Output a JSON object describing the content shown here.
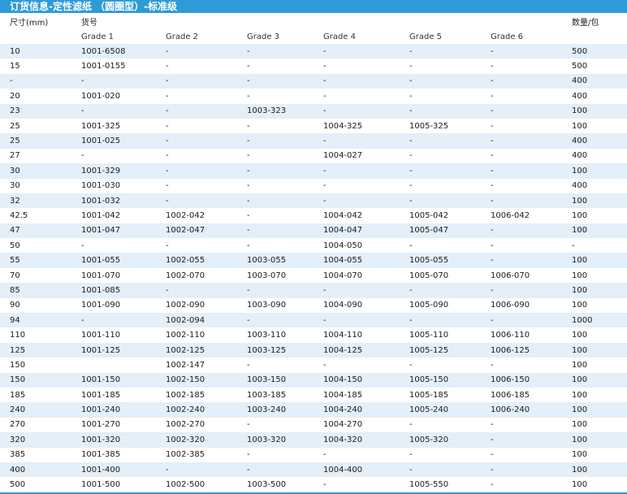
{
  "title": "订货信息-定性滤纸 （圆圈型）-标准级",
  "header": {
    "size_label": "尺寸(mm)",
    "catalog_label": "货号",
    "qty_label": "数量/包",
    "grades": [
      "Grade 1",
      "Grade 2",
      "Grade 3",
      "Grade 4",
      "Grade 5",
      "Grade 6"
    ]
  },
  "rows": [
    [
      "10",
      "1001-6508",
      "-",
      "-",
      "-",
      "-",
      "-",
      "500"
    ],
    [
      "15",
      "1001-0155",
      "-",
      "-",
      "-",
      "-",
      "-",
      "500"
    ],
    [
      "-",
      "-",
      "-",
      "-",
      "-",
      "-",
      "-",
      "400"
    ],
    [
      "20",
      "1001-020",
      "-",
      "-",
      "-",
      "-",
      "-",
      "400"
    ],
    [
      "23",
      "-",
      "-",
      "1003-323",
      "-",
      "-",
      "-",
      "100"
    ],
    [
      "25",
      "1001-325",
      "-",
      "-",
      "1004-325",
      "1005-325",
      "-",
      "100"
    ],
    [
      "25",
      "1001-025",
      "-",
      "-",
      "-",
      "-",
      "-",
      "400"
    ],
    [
      "27",
      "-",
      "-",
      "-",
      "1004-027",
      "-",
      "-",
      "400"
    ],
    [
      "30",
      "1001-329",
      "-",
      "-",
      "-",
      "-",
      "-",
      "100"
    ],
    [
      "30",
      "1001-030",
      "-",
      "-",
      "-",
      "-",
      "-",
      "400"
    ],
    [
      "32",
      "1001-032",
      "-",
      "-",
      "-",
      "-",
      "-",
      "100"
    ],
    [
      "42.5",
      "1001-042",
      "1002-042",
      "-",
      "1004-042",
      "1005-042",
      "1006-042",
      "100"
    ],
    [
      "47",
      "1001-047",
      "1002-047",
      "-",
      "1004-047",
      "1005-047",
      "-",
      "100"
    ],
    [
      "50",
      "-",
      "-",
      "-",
      "1004-050",
      "-",
      "-",
      "-"
    ],
    [
      "55",
      "1001-055",
      "1002-055",
      "1003-055",
      "1004-055",
      "1005-055",
      "-",
      "100"
    ],
    [
      "70",
      "1001-070",
      "1002-070",
      "1003-070",
      "1004-070",
      "1005-070",
      "1006-070",
      "100"
    ],
    [
      "85",
      "1001-085",
      "-",
      "-",
      "-",
      "-",
      "-",
      "100"
    ],
    [
      "90",
      "1001-090",
      "1002-090",
      "1003-090",
      "1004-090",
      "1005-090",
      "1006-090",
      "100"
    ],
    [
      "94",
      "-",
      "1002-094",
      "-",
      "-",
      "-",
      "-",
      "1000"
    ],
    [
      "110",
      "1001-110",
      "1002-110",
      "1003-110",
      "1004-110",
      "1005-110",
      "1006-110",
      "100"
    ],
    [
      "125",
      "1001-125",
      "1002-125",
      "1003-125",
      "1004-125",
      "1005-125",
      "1006-125",
      "100"
    ],
    [
      "150",
      "",
      "1002-147",
      "-",
      "-",
      "-",
      "-",
      "100"
    ],
    [
      "150",
      "1001-150",
      "1002-150",
      "1003-150",
      "1004-150",
      "1005-150",
      "1006-150",
      "100"
    ],
    [
      "185",
      "1001-185",
      "1002-185",
      "1003-185",
      "1004-185",
      "1005-185",
      "1006-185",
      "100"
    ],
    [
      "240",
      "1001-240",
      "1002-240",
      "1003-240",
      "1004-240",
      "1005-240",
      "1006-240",
      "100"
    ],
    [
      "270",
      "1001-270",
      "1002-270",
      "-",
      "1004-270",
      "-",
      "-",
      "100"
    ],
    [
      "320",
      "1001-320",
      "1002-320",
      "1003-320",
      "1004-320",
      "1005-320",
      "-",
      "100"
    ],
    [
      "385",
      "1001-385",
      "1002-385",
      "-",
      "-",
      "-",
      "-",
      "100"
    ],
    [
      "400",
      "1001-400",
      "-",
      "-",
      "1004-400",
      "-",
      "-",
      "100"
    ],
    [
      "500",
      "1001-500",
      "1002-500",
      "1003-500",
      "-",
      "1005-550",
      "-",
      "100"
    ]
  ]
}
